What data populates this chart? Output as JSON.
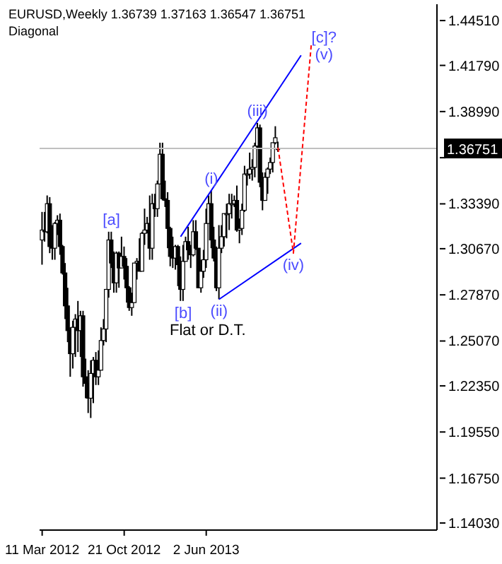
{
  "chart_data": {
    "type": "candlestick",
    "title": "EURUSD,Weekly 1.36739 1.37163 1.36547 1.36751",
    "subtitle": "Diagonal",
    "color": "#000000",
    "x": [
      "2012-03-11",
      "2012-03-18",
      "2012-03-25",
      "2012-04-01",
      "2012-04-08",
      "2012-04-15",
      "2012-04-22",
      "2012-04-29",
      "2012-05-06",
      "2012-05-13",
      "2012-05-20",
      "2012-05-27",
      "2012-06-03",
      "2012-06-10",
      "2012-06-17",
      "2012-06-24",
      "2012-07-01",
      "2012-07-08",
      "2012-07-15",
      "2012-07-22",
      "2012-07-29",
      "2012-08-05",
      "2012-08-12",
      "2012-08-19",
      "2012-08-26",
      "2012-09-02",
      "2012-09-09",
      "2012-09-16",
      "2012-09-23",
      "2012-09-30",
      "2012-10-07",
      "2012-10-14",
      "2012-10-21",
      "2012-10-28",
      "2012-11-04",
      "2012-11-11",
      "2012-11-18",
      "2012-11-25",
      "2012-12-02",
      "2012-12-09",
      "2012-12-16",
      "2012-12-23",
      "2012-12-30",
      "2013-01-06",
      "2013-01-13",
      "2013-01-20",
      "2013-01-27",
      "2013-02-03",
      "2013-02-10",
      "2013-02-17",
      "2013-02-24",
      "2013-03-03",
      "2013-03-10",
      "2013-03-17",
      "2013-03-24",
      "2013-03-31",
      "2013-04-07",
      "2013-04-14",
      "2013-04-21",
      "2013-04-28",
      "2013-05-05",
      "2013-05-12",
      "2013-05-19",
      "2013-05-26",
      "2013-06-02",
      "2013-06-09",
      "2013-06-16",
      "2013-06-23",
      "2013-06-30",
      "2013-07-07",
      "2013-07-14",
      "2013-07-21",
      "2013-07-28",
      "2013-08-04",
      "2013-08-11",
      "2013-08-18",
      "2013-08-25",
      "2013-09-01",
      "2013-09-08",
      "2013-09-15",
      "2013-09-22",
      "2013-09-29",
      "2013-10-06",
      "2013-10-13",
      "2013-10-20",
      "2013-10-27",
      "2013-11-03",
      "2013-11-10",
      "2013-11-17",
      "2013-11-24",
      "2013-12-01",
      "2013-12-08",
      "2013-12-15"
    ],
    "ohlc": [
      [
        1.312,
        1.329,
        1.297,
        1.318
      ],
      [
        1.318,
        1.329,
        1.311,
        1.317
      ],
      [
        1.317,
        1.339,
        1.316,
        1.334
      ],
      [
        1.334,
        1.338,
        1.304,
        1.308
      ],
      [
        1.308,
        1.321,
        1.3,
        1.307
      ],
      [
        1.307,
        1.323,
        1.3,
        1.322
      ],
      [
        1.322,
        1.327,
        1.315,
        1.324
      ],
      [
        1.324,
        1.328,
        1.303,
        1.308
      ],
      [
        1.308,
        1.309,
        1.291,
        1.292
      ],
      [
        1.292,
        1.298,
        1.264,
        1.272
      ],
      [
        1.272,
        1.283,
        1.25,
        1.257
      ],
      [
        1.257,
        1.259,
        1.229,
        1.243
      ],
      [
        1.243,
        1.263,
        1.234,
        1.259
      ],
      [
        1.259,
        1.267,
        1.241,
        1.264
      ],
      [
        1.264,
        1.275,
        1.244,
        1.257
      ],
      [
        1.257,
        1.269,
        1.241,
        1.266
      ],
      [
        1.266,
        1.269,
        1.223,
        1.229
      ],
      [
        1.229,
        1.24,
        1.216,
        1.225
      ],
      [
        1.225,
        1.233,
        1.207,
        1.216
      ],
      [
        1.216,
        1.239,
        1.204,
        1.231
      ],
      [
        1.231,
        1.241,
        1.213,
        1.239
      ],
      [
        1.239,
        1.244,
        1.224,
        1.229
      ],
      [
        1.229,
        1.245,
        1.224,
        1.233
      ],
      [
        1.233,
        1.259,
        1.233,
        1.251
      ],
      [
        1.251,
        1.264,
        1.248,
        1.258
      ],
      [
        1.258,
        1.282,
        1.25,
        1.282
      ],
      [
        1.282,
        1.317,
        1.277,
        1.312
      ],
      [
        1.312,
        1.317,
        1.295,
        1.298
      ],
      [
        1.298,
        1.305,
        1.28,
        1.286
      ],
      [
        1.286,
        1.305,
        1.28,
        1.304
      ],
      [
        1.304,
        1.305,
        1.283,
        1.295
      ],
      [
        1.295,
        1.314,
        1.295,
        1.302
      ],
      [
        1.302,
        1.308,
        1.288,
        1.296
      ],
      [
        1.296,
        1.301,
        1.274,
        1.283
      ],
      [
        1.283,
        1.284,
        1.269,
        1.271
      ],
      [
        1.271,
        1.28,
        1.266,
        1.274
      ],
      [
        1.274,
        1.298,
        1.274,
        1.298
      ],
      [
        1.298,
        1.301,
        1.288,
        1.299
      ],
      [
        1.299,
        1.313,
        1.293,
        1.293
      ],
      [
        1.293,
        1.317,
        1.293,
        1.316
      ],
      [
        1.316,
        1.331,
        1.309,
        1.318
      ],
      [
        1.318,
        1.326,
        1.316,
        1.322
      ],
      [
        1.322,
        1.339,
        1.3,
        1.307
      ],
      [
        1.307,
        1.34,
        1.3,
        1.334
      ],
      [
        1.334,
        1.34,
        1.326,
        1.331
      ],
      [
        1.331,
        1.348,
        1.326,
        1.346
      ],
      [
        1.346,
        1.371,
        1.346,
        1.364
      ],
      [
        1.364,
        1.371,
        1.336,
        1.337
      ],
      [
        1.337,
        1.348,
        1.332,
        1.336
      ],
      [
        1.336,
        1.341,
        1.307,
        1.319
      ],
      [
        1.319,
        1.32,
        1.296,
        1.302
      ],
      [
        1.302,
        1.314,
        1.295,
        1.301
      ],
      [
        1.301,
        1.309,
        1.294,
        1.308
      ],
      [
        1.308,
        1.309,
        1.284,
        1.297
      ],
      [
        1.297,
        1.302,
        1.275,
        1.282
      ],
      [
        1.282,
        1.309,
        1.275,
        1.299
      ],
      [
        1.299,
        1.314,
        1.299,
        1.311
      ],
      [
        1.311,
        1.32,
        1.3,
        1.306
      ],
      [
        1.306,
        1.309,
        1.295,
        1.303
      ],
      [
        1.303,
        1.324,
        1.302,
        1.317
      ],
      [
        1.317,
        1.324,
        1.306,
        1.307
      ],
      [
        1.307,
        1.307,
        1.283,
        1.283
      ],
      [
        1.283,
        1.3,
        1.28,
        1.293
      ],
      [
        1.293,
        1.306,
        1.289,
        1.3
      ],
      [
        1.3,
        1.331,
        1.295,
        1.322
      ],
      [
        1.322,
        1.339,
        1.322,
        1.334
      ],
      [
        1.334,
        1.342,
        1.307,
        1.312
      ],
      [
        1.312,
        1.32,
        1.299,
        1.301
      ],
      [
        1.301,
        1.308,
        1.281,
        1.283
      ],
      [
        1.283,
        1.321,
        1.276,
        1.307
      ],
      [
        1.307,
        1.321,
        1.304,
        1.314
      ],
      [
        1.314,
        1.328,
        1.308,
        1.328
      ],
      [
        1.328,
        1.334,
        1.313,
        1.328
      ],
      [
        1.328,
        1.34,
        1.318,
        1.334
      ],
      [
        1.334,
        1.34,
        1.325,
        1.334
      ],
      [
        1.334,
        1.339,
        1.332,
        1.336
      ],
      [
        1.336,
        1.345,
        1.317,
        1.318
      ],
      [
        1.318,
        1.325,
        1.31,
        1.319
      ],
      [
        1.319,
        1.334,
        1.315,
        1.33
      ],
      [
        1.33,
        1.357,
        1.329,
        1.352
      ],
      [
        1.352,
        1.355,
        1.345,
        1.352
      ],
      [
        1.352,
        1.365,
        1.349,
        1.355
      ],
      [
        1.355,
        1.361,
        1.348,
        1.356
      ],
      [
        1.356,
        1.371,
        1.35,
        1.369
      ],
      [
        1.369,
        1.383,
        1.367,
        1.38
      ],
      [
        1.38,
        1.382,
        1.344,
        1.347
      ],
      [
        1.347,
        1.353,
        1.33,
        1.336
      ],
      [
        1.336,
        1.353,
        1.336,
        1.35
      ],
      [
        1.35,
        1.356,
        1.34,
        1.355
      ],
      [
        1.355,
        1.362,
        1.352,
        1.359
      ],
      [
        1.359,
        1.371,
        1.353,
        1.371
      ],
      [
        1.371,
        1.381,
        1.37,
        1.374
      ],
      [
        1.36739,
        1.37163,
        1.36547,
        1.36751
      ]
    ],
    "series": [
      {
        "type": "line",
        "color": "#0000ff",
        "x": [
          "2013-03-24",
          "2014-02-16"
        ],
        "values": [
          1.314,
          1.424
        ]
      },
      {
        "type": "line",
        "color": "#0000ff",
        "x": [
          "2013-07-07",
          "2014-02-16"
        ],
        "values": [
          1.276,
          1.31
        ]
      },
      {
        "type": "line",
        "color": "#ff0000",
        "line_style": "dashed",
        "x": [
          "2013-12-15",
          "2014-01-26",
          "2014-03-16"
        ],
        "values": [
          1.368,
          1.304,
          1.431
        ]
      }
    ],
    "xlim": [
      "2012-03-04",
      "2015-02-22"
    ],
    "xticks": [
      {
        "value": "2012-03-11",
        "label": "11 Mar 2012"
      },
      {
        "value": "2012-10-21",
        "label": "21 Oct 2012"
      },
      {
        "value": "2013-06-02",
        "label": "2 Jun 2013"
      }
    ],
    "ylim": [
      1.136,
      1.455
    ],
    "yticks": [
      {
        "value": 1.4451,
        "label": "1.44510"
      },
      {
        "value": 1.4179,
        "label": "1.41790"
      },
      {
        "value": 1.3899,
        "label": "1.38990"
      },
      {
        "value": 1.3619,
        "label": null
      },
      {
        "value": 1.3339,
        "label": "1.33390"
      },
      {
        "value": 1.3067,
        "label": "1.30670"
      },
      {
        "value": 1.2787,
        "label": "1.27870"
      },
      {
        "value": 1.2507,
        "label": "1.25070"
      },
      {
        "value": 1.2235,
        "label": "1.22350"
      },
      {
        "value": 1.1955,
        "label": "1.19550"
      },
      {
        "value": 1.1675,
        "label": "1.16750"
      },
      {
        "value": 1.1403,
        "label": "1.14030"
      }
    ],
    "ref_lines": [
      {
        "axis": "y",
        "value": 1.36751,
        "label": "1.36751",
        "color": "#c0c0c0"
      }
    ],
    "annotations": [
      {
        "text": "[a]",
        "x": "2012-09-16",
        "y": 1.317
      },
      {
        "text": "[b]",
        "x": "2013-03-31",
        "y": 1.275
      },
      "Flat or D.T.",
      {
        "text": "(i)",
        "x": "2013-06-16",
        "y": 1.342
      },
      {
        "text": "(ii)",
        "x": "2013-07-07",
        "y": 1.276
      },
      {
        "text": "(iii)",
        "x": "2013-10-20",
        "y": 1.383
      },
      {
        "text": "(iv)",
        "x": "2014-01-26",
        "y": 1.304
      },
      {
        "text": "(v)",
        "x": "2014-03-16",
        "y": 1.431
      },
      {
        "text": "[c]?",
        "x": "2014-03-16",
        "y": 1.431
      }
    ]
  }
}
